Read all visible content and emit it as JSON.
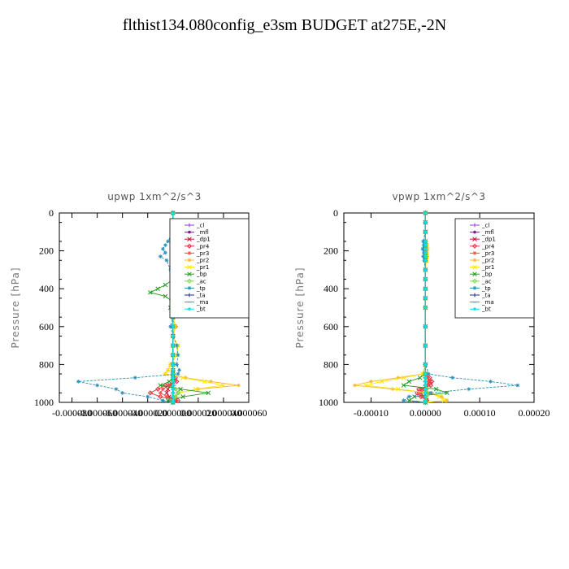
{
  "title": "flthist134.080config_e3sm  BUDGET at275E,-2N",
  "legend_order": [
    "cl",
    "mfl",
    "dp1",
    "pr4",
    "pr3",
    "pr2",
    "pr1",
    "bp",
    "ac",
    "tp",
    "ta",
    "ma",
    "bt"
  ],
  "series_styles": {
    "cl": {
      "color": "#8a3fd1",
      "marker": "plus"
    },
    "mfl": {
      "color": "#7a1f8f",
      "marker": "circle"
    },
    "dp1": {
      "color": "#c0102a",
      "marker": "x"
    },
    "pr4": {
      "color": "#e0303c",
      "marker": "diamond"
    },
    "pr3": {
      "color": "#ff4a4a",
      "marker": "star"
    },
    "pr2": {
      "color": "#f2b830",
      "marker": "star"
    },
    "pr1": {
      "color": "#ffe600",
      "marker": "x"
    },
    "bp": {
      "color": "#1f9a1f",
      "marker": "x"
    },
    "ac": {
      "color": "#7ad94a",
      "marker": "diamond"
    },
    "tp": {
      "color": "#2a8fb8",
      "marker": "star"
    },
    "ta": {
      "color": "#1a2a8a",
      "marker": "plus"
    },
    "ma": {
      "color": "#20a0d0",
      "marker": "dash"
    },
    "bt": {
      "color": "#00e5e5",
      "marker": "circle"
    }
  },
  "chart_data": [
    {
      "type": "line",
      "title": "upwp   1xm^2/s^3",
      "xlabel": "",
      "ylabel": "Pressure [hPa]",
      "xlim": [
        -9e-05,
        6e-05
      ],
      "ylim": [
        1000,
        0
      ],
      "xticks": [
        -8e-05,
        -6e-05,
        -4e-05,
        -2e-05,
        0.0,
        2e-05,
        4e-05,
        6e-05
      ],
      "xtick_labels": [
        "-0.000080",
        "-0.000060",
        "-0.000040",
        "-0.000020",
        "0.000000",
        "0.000020",
        "0.000040",
        "0.000060"
      ],
      "yticks": [
        0,
        200,
        400,
        600,
        800,
        1000
      ],
      "ytick_labels": [
        "0",
        "200",
        "400",
        "600",
        "800",
        "1000"
      ],
      "legend": "top-right",
      "pressure": [
        0,
        50,
        100,
        150,
        170,
        190,
        210,
        230,
        250,
        300,
        350,
        380,
        400,
        420,
        440,
        470,
        500,
        550,
        600,
        650,
        700,
        750,
        800,
        830,
        850,
        870,
        890,
        910,
        930,
        950,
        970,
        990,
        1000
      ],
      "series": [
        {
          "name": "cl",
          "values": [
            0,
            0,
            0,
            0,
            0,
            0,
            0,
            0,
            0,
            0,
            0,
            0,
            0,
            0,
            0,
            0,
            0,
            0,
            0,
            0,
            0,
            0,
            0,
            0,
            0,
            0,
            0,
            0,
            0,
            0,
            0,
            0,
            0
          ]
        },
        {
          "name": "mfl",
          "values": [
            0,
            0,
            0,
            0,
            0,
            0,
            0,
            0,
            0,
            0,
            0,
            0,
            0,
            0,
            0,
            0,
            0,
            0,
            0,
            0,
            0,
            0,
            0,
            0,
            0,
            0,
            0,
            0,
            0,
            0,
            0,
            0,
            0
          ]
        },
        {
          "name": "dp1",
          "values": [
            0,
            0,
            0,
            0,
            0,
            0,
            0,
            0,
            0,
            0,
            0,
            0,
            4e-06,
            8e-06,
            3e-06,
            0,
            0,
            0,
            0,
            0,
            0,
            0,
            0,
            0,
            0,
            0,
            0,
            -2e-06,
            -4e-06,
            -5e-06,
            -3e-06,
            2e-06,
            0
          ]
        },
        {
          "name": "pr4",
          "values": [
            0,
            0,
            0,
            0,
            0,
            0,
            0,
            0,
            0,
            0,
            0,
            0,
            5e-06,
            1.2e-05,
            4e-06,
            0,
            2e-06,
            0,
            2e-06,
            0,
            0,
            0,
            0,
            0,
            0,
            2e-06,
            3e-06,
            -6e-06,
            -1.2e-05,
            -1.8e-05,
            -1e-05,
            4e-06,
            0
          ]
        },
        {
          "name": "pr3",
          "values": [
            0,
            0,
            0,
            0,
            0,
            0,
            0,
            0,
            0,
            0,
            0,
            0,
            0,
            4e-06,
            1e-06,
            0,
            0,
            0,
            0,
            0,
            0,
            0,
            0,
            0,
            0,
            0,
            0,
            -3e-06,
            -8e-06,
            -1e-05,
            -5e-06,
            2e-06,
            0
          ]
        },
        {
          "name": "pr2",
          "values": [
            0,
            0,
            0,
            4e-06,
            6e-06,
            8e-06,
            6e-06,
            8e-06,
            5e-06,
            2e-06,
            0,
            0,
            0,
            0,
            0,
            0,
            0,
            0,
            2e-06,
            0,
            4e-06,
            3e-06,
            -2e-06,
            -4e-06,
            -6e-06,
            1e-05,
            3e-05,
            5.2e-05,
            2e-05,
            4e-06,
            2e-06,
            -1e-06,
            0
          ]
        },
        {
          "name": "pr1",
          "values": [
            0,
            0,
            0,
            4e-06,
            5e-06,
            8e-06,
            6e-06,
            7e-06,
            4e-06,
            2e-06,
            0,
            0,
            0,
            0,
            0,
            0,
            0,
            0,
            2e-06,
            0,
            4e-06,
            3e-06,
            -2e-06,
            -4e-06,
            -6e-06,
            8e-06,
            2.5e-05,
            4e-05,
            1.8e-05,
            5e-06,
            2e-06,
            -1e-06,
            0
          ]
        },
        {
          "name": "bp",
          "values": [
            0,
            0,
            0,
            0,
            0,
            0,
            0,
            0,
            0,
            0,
            0,
            -6e-06,
            -1.2e-05,
            -1.8e-05,
            -6e-06,
            0,
            -2e-06,
            0,
            0,
            0,
            0,
            0,
            0,
            0,
            0,
            0,
            -3e-06,
            -1e-05,
            6e-06,
            2.8e-05,
            8e-06,
            -4e-06,
            0
          ]
        },
        {
          "name": "ac",
          "values": [
            0,
            0,
            0,
            0,
            0,
            0,
            0,
            0,
            0,
            0,
            0,
            0,
            0,
            0,
            0,
            0,
            0,
            0,
            0,
            0,
            0,
            0,
            0,
            0,
            0,
            0,
            0,
            0,
            2e-06,
            4e-06,
            2e-06,
            0,
            0
          ]
        },
        {
          "name": "tp",
          "values": [
            0,
            0,
            0,
            -4e-06,
            -6e-06,
            -8e-06,
            -6e-06,
            -1e-05,
            -5e-06,
            -2e-06,
            0,
            0,
            0,
            0,
            0,
            0,
            0,
            0,
            -2e-06,
            0,
            3e-06,
            4e-06,
            3e-06,
            5e-06,
            4e-06,
            -3e-05,
            -7.5e-05,
            -6e-05,
            -4.5e-05,
            -4e-05,
            -2e-05,
            -8e-06,
            0
          ]
        },
        {
          "name": "ta",
          "values": [
            0,
            0,
            0,
            0,
            0,
            0,
            0,
            0,
            0,
            0,
            0,
            0,
            0,
            0,
            0,
            0,
            0,
            0,
            0,
            0,
            0,
            0,
            0,
            0,
            0,
            0,
            0,
            0,
            0,
            0,
            0,
            0,
            0
          ]
        },
        {
          "name": "ma",
          "values": [
            0,
            0,
            0,
            0,
            0,
            0,
            0,
            0,
            0,
            0,
            0,
            0,
            0,
            0,
            0,
            0,
            0,
            0,
            0,
            0,
            0,
            0,
            0,
            0,
            0,
            0,
            0,
            1e-06,
            0,
            0,
            0,
            0,
            0
          ]
        },
        {
          "name": "bt",
          "values": [
            0,
            0,
            0,
            0,
            0,
            0,
            0,
            0,
            0,
            0,
            0,
            0,
            0,
            0,
            0,
            0,
            0,
            0,
            0,
            0,
            0,
            0,
            0,
            0,
            0,
            0,
            0,
            0,
            0,
            0,
            0,
            0,
            0
          ]
        }
      ]
    },
    {
      "type": "line",
      "title": "vpwp   1xm^2/s^3",
      "xlabel": "",
      "ylabel": "Pressure [hPa]",
      "xlim": [
        -0.00015,
        0.0002
      ],
      "ylim": [
        1000,
        0
      ],
      "xticks": [
        -0.0001,
        0.0,
        0.0001,
        0.0002
      ],
      "xtick_labels": [
        "-0.00010",
        "0.00000",
        "0.00010",
        "0.00020"
      ],
      "yticks": [
        0,
        200,
        400,
        600,
        800,
        1000
      ],
      "ytick_labels": [
        "0",
        "200",
        "400",
        "600",
        "800",
        "1000"
      ],
      "legend": "top-right",
      "pressure": [
        0,
        50,
        100,
        150,
        170,
        190,
        210,
        230,
        250,
        300,
        350,
        400,
        450,
        500,
        600,
        700,
        800,
        850,
        870,
        890,
        910,
        930,
        950,
        970,
        990,
        1000
      ],
      "series": [
        {
          "name": "cl",
          "values": [
            0,
            0,
            0,
            0,
            0,
            0,
            0,
            0,
            0,
            0,
            0,
            0,
            0,
            0,
            0,
            0,
            0,
            0,
            0,
            0,
            0,
            0,
            0,
            0,
            0,
            0
          ]
        },
        {
          "name": "mfl",
          "values": [
            0,
            0,
            0,
            0,
            0,
            0,
            0,
            0,
            0,
            0,
            0,
            0,
            0,
            0,
            0,
            0,
            0,
            0,
            0,
            0,
            0,
            0,
            0,
            0,
            0,
            0
          ]
        },
        {
          "name": "dp1",
          "values": [
            0,
            0,
            0,
            0,
            0,
            0,
            0,
            0,
            0,
            0,
            0,
            0,
            0,
            0,
            0,
            0,
            0,
            0,
            4e-06,
            8e-06,
            6e-06,
            -6e-06,
            -8e-06,
            -4e-06,
            2e-06,
            0
          ]
        },
        {
          "name": "pr4",
          "values": [
            0,
            0,
            0,
            0,
            0,
            0,
            0,
            0,
            0,
            0,
            0,
            0,
            0,
            0,
            0,
            0,
            0,
            0,
            8e-06,
            1.2e-05,
            1e-05,
            -1.2e-05,
            -1.5e-05,
            -8e-06,
            3e-06,
            0
          ]
        },
        {
          "name": "pr3",
          "values": [
            0,
            0,
            0,
            0,
            0,
            0,
            0,
            0,
            0,
            0,
            0,
            0,
            0,
            0,
            0,
            0,
            0,
            0,
            4e-06,
            6e-06,
            5e-06,
            -6e-06,
            -8e-06,
            -4e-06,
            2e-06,
            0
          ]
        },
        {
          "name": "pr2",
          "values": [
            0,
            0,
            0,
            0,
            3e-06,
            4e-06,
            3e-06,
            4e-06,
            2e-06,
            0,
            0,
            0,
            0,
            0,
            0,
            0,
            0,
            -5e-06,
            -5e-05,
            -0.0001,
            -0.00013,
            -6e-05,
            1e-05,
            3e-05,
            4e-05,
            0
          ]
        },
        {
          "name": "pr1",
          "values": [
            0,
            0,
            0,
            0,
            3e-06,
            4e-06,
            3e-06,
            3e-06,
            2e-06,
            0,
            0,
            0,
            0,
            0,
            0,
            0,
            0,
            -4e-06,
            -4e-05,
            -8e-05,
            -0.00011,
            -5e-05,
            8e-06,
            2.5e-05,
            3.5e-05,
            0
          ]
        },
        {
          "name": "bp",
          "values": [
            0,
            0,
            0,
            0,
            0,
            0,
            0,
            0,
            0,
            0,
            0,
            0,
            0,
            0,
            0,
            0,
            0,
            0,
            -1e-05,
            -3e-05,
            -4e-05,
            2e-05,
            4e-05,
            -2e-05,
            -3e-05,
            0
          ]
        },
        {
          "name": "ac",
          "values": [
            0,
            0,
            0,
            0,
            0,
            0,
            0,
            0,
            0,
            0,
            0,
            0,
            0,
            0,
            0,
            0,
            0,
            0,
            0,
            0,
            0,
            2e-06,
            4e-06,
            2e-06,
            0,
            0
          ]
        },
        {
          "name": "tp",
          "values": [
            0,
            0,
            0,
            -4e-06,
            -3e-06,
            -5e-06,
            -3e-06,
            -4e-06,
            -2e-06,
            0,
            0,
            0,
            0,
            0,
            0,
            0,
            0,
            6e-06,
            5e-05,
            0.00012,
            0.00017,
            8e-05,
            1e-05,
            -3e-05,
            -4e-05,
            0
          ]
        },
        {
          "name": "ta",
          "values": [
            0,
            0,
            0,
            0,
            0,
            0,
            0,
            0,
            0,
            0,
            0,
            0,
            0,
            0,
            0,
            0,
            0,
            0,
            0,
            0,
            0,
            0,
            0,
            0,
            0,
            0
          ]
        },
        {
          "name": "ma",
          "values": [
            0,
            0,
            0,
            0,
            0,
            0,
            0,
            0,
            0,
            0,
            0,
            0,
            0,
            0,
            0,
            0,
            0,
            0,
            0,
            0,
            1e-06,
            0,
            0,
            0,
            0,
            0
          ]
        },
        {
          "name": "bt",
          "values": [
            0,
            0,
            0,
            0,
            0,
            0,
            0,
            0,
            0,
            0,
            0,
            0,
            0,
            0,
            0,
            0,
            0,
            0,
            0,
            0,
            0,
            0,
            0,
            0,
            0,
            0
          ]
        }
      ]
    }
  ]
}
